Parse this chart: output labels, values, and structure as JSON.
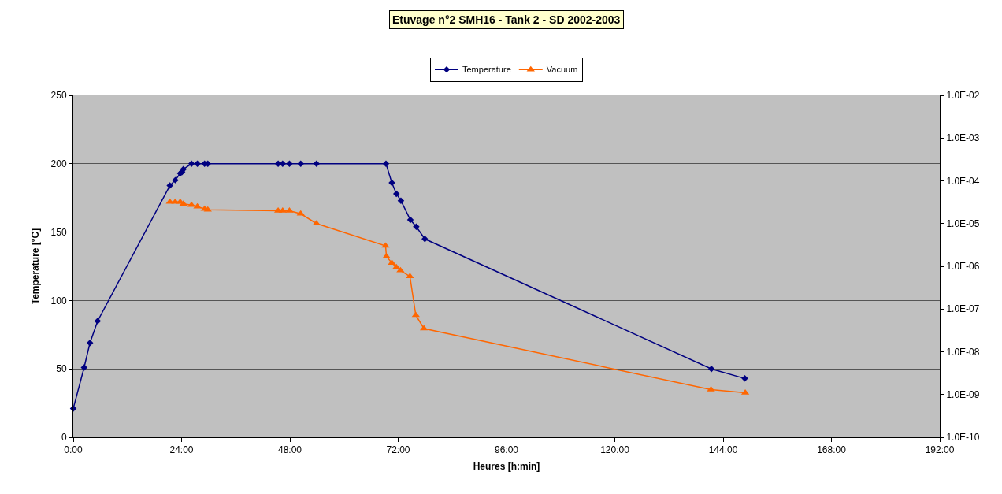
{
  "chart_data": {
    "type": "line",
    "title": "Etuvage n°2 SMH16 - Tank 2 - SD 2002-2003",
    "xlabel": "Heures [h:min]",
    "ylabel": "Temperature [°C]",
    "series": [
      {
        "name": "Temperature",
        "color": "#000080",
        "marker": "diamond",
        "x": [
          0,
          2.4,
          3.7,
          5.4,
          21.4,
          22.6,
          23.7,
          24.1,
          24.4,
          26.2,
          27.5,
          29.1,
          29.8,
          45.4,
          46.4,
          47.9,
          50.4,
          53.9,
          69.3,
          70.6,
          71.6,
          72.6,
          74.7,
          76.0,
          77.9,
          141.4,
          148.8
        ],
        "values": [
          21,
          51,
          69,
          85,
          184,
          188,
          193,
          194,
          196,
          200,
          200,
          200,
          200,
          200,
          200,
          200,
          200,
          200,
          200,
          186,
          178,
          173,
          159,
          154,
          145,
          50,
          43
        ]
      },
      {
        "name": "Vacuum",
        "color": "#ff6600",
        "marker": "triangle",
        "axis": "y2",
        "x": [
          21.4,
          22.6,
          23.7,
          24.4,
          26.2,
          27.5,
          29.1,
          29.8,
          45.4,
          46.4,
          47.9,
          50.4,
          53.9,
          69.2,
          69.4,
          70.6,
          71.6,
          72.5,
          74.6,
          75.9,
          77.7,
          141.3,
          148.9
        ],
        "values": [
          3.2e-05,
          3.2e-05,
          3.2e-05,
          2.9e-05,
          2.7e-05,
          2.5e-05,
          2.2e-05,
          2.1e-05,
          2e-05,
          2e-05,
          2e-05,
          1.7e-05,
          1e-05,
          3e-06,
          1.7e-06,
          1.2e-06,
          9.5e-07,
          8e-07,
          5.8e-07,
          7.2e-08,
          3.5e-08,
          1.3e-09,
          1.1e-09
        ]
      }
    ],
    "xlim": [
      0,
      192
    ],
    "xticks": [
      {
        "value": 0,
        "label": "0:00"
      },
      {
        "value": 24,
        "label": "24:00"
      },
      {
        "value": 48,
        "label": "48:00"
      },
      {
        "value": 72,
        "label": "72:00"
      },
      {
        "value": 96,
        "label": "96:00"
      },
      {
        "value": 120,
        "label": "120:00"
      },
      {
        "value": 144,
        "label": "144:00"
      },
      {
        "value": 168,
        "label": "168:00"
      },
      {
        "value": 192,
        "label": "192:00"
      }
    ],
    "ylim": [
      0,
      250
    ],
    "yticks": [
      0,
      50,
      100,
      150,
      200,
      250
    ],
    "y2lim": [
      1e-10,
      0.01
    ],
    "y2ticks": [
      {
        "value": 1e-10,
        "label": "1.0E-10"
      },
      {
        "value": 1e-09,
        "label": "1.0E-09"
      },
      {
        "value": 1e-08,
        "label": "1.0E-08"
      },
      {
        "value": 1e-07,
        "label": "1.0E-07"
      },
      {
        "value": 1e-06,
        "label": "1.0E-06"
      },
      {
        "value": 1e-05,
        "label": "1.0E-05"
      },
      {
        "value": 0.0001,
        "label": "1.0E-04"
      },
      {
        "value": 0.001,
        "label": "1.0E-03"
      },
      {
        "value": 0.01,
        "label": "1.0E-02"
      }
    ],
    "log": "y2",
    "grid": "y",
    "legend": "top",
    "line_style": "solid"
  }
}
